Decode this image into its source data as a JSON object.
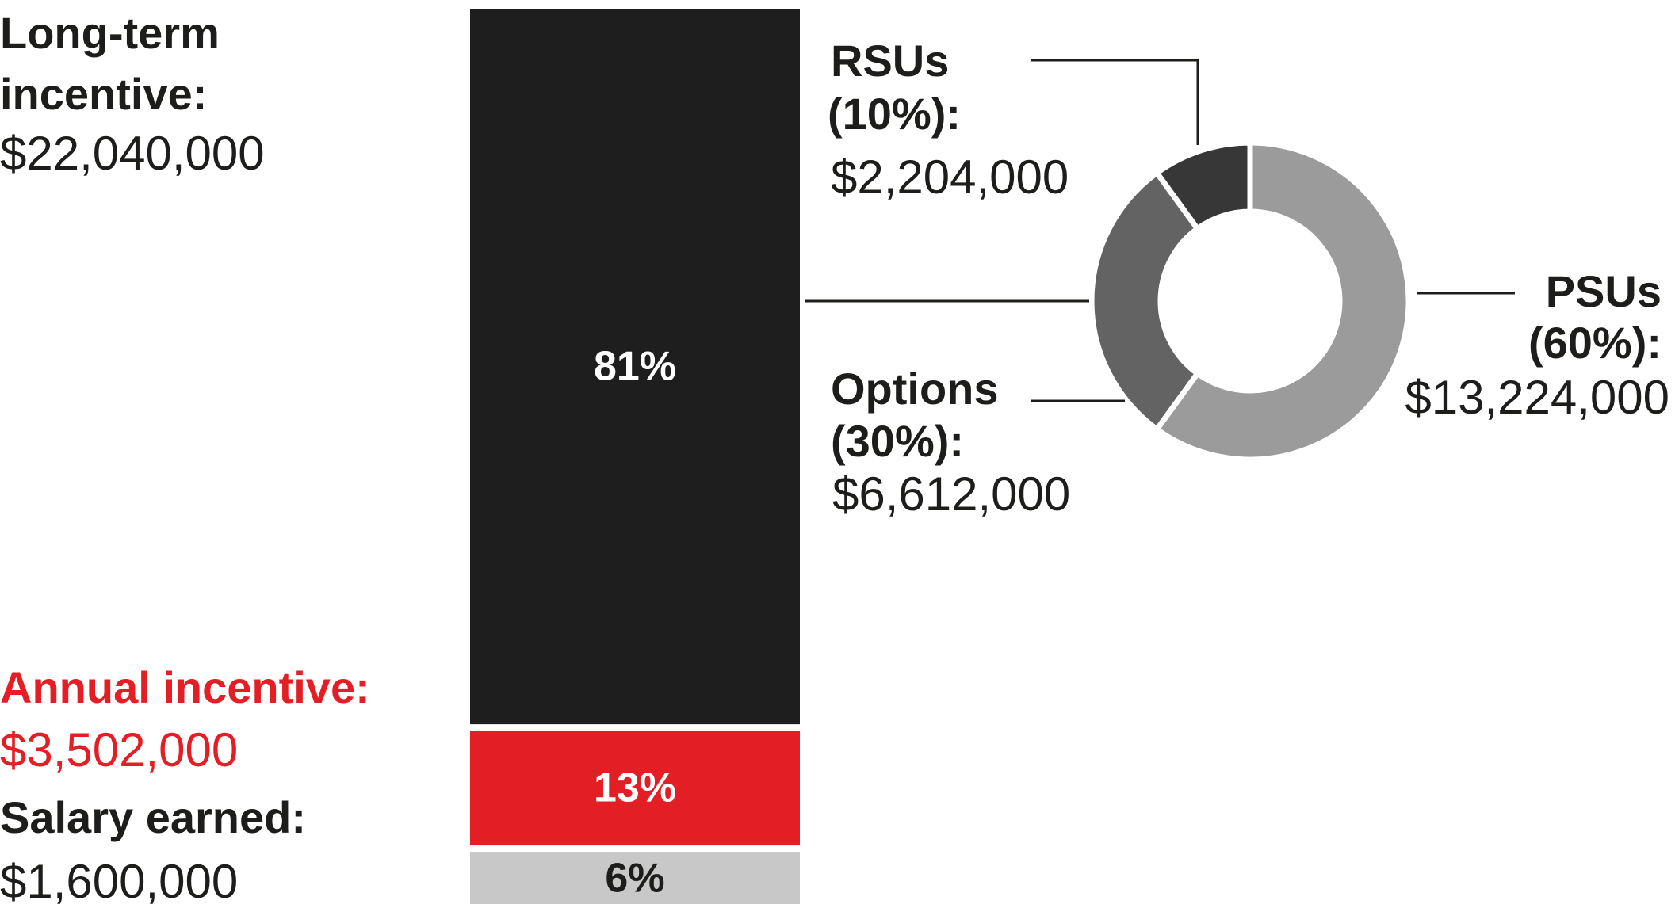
{
  "colors": {
    "long_term": "#1e1e1e",
    "annual": "#e31e24",
    "salary": "#c8c8c8",
    "psus": "#9b9b9b",
    "options": "#636363",
    "rsus": "#373737",
    "text": "#1d1d1b",
    "bar_label_light": "#ffffff"
  },
  "chart_data": [
    {
      "type": "bar",
      "stacked": true,
      "categories": [
        "Salary earned",
        "Annual incentive",
        "Long-term incentive"
      ],
      "series": [
        {
          "name": "Long-term incentive",
          "amount": "$22,040,000",
          "value": 22040000,
          "percent": 81,
          "label": "81%",
          "color_key": "long_term"
        },
        {
          "name": "Annual incentive",
          "amount": "$3,502,000",
          "value": 3502000,
          "percent": 13,
          "label": "13%",
          "color_key": "annual"
        },
        {
          "name": "Salary earned",
          "amount": "$1,600,000",
          "value": 1600000,
          "percent": 6,
          "label": "6%",
          "color_key": "salary"
        }
      ],
      "legend": {
        "long_term": {
          "title_line1": "Long-term",
          "title_line2": "incentive:",
          "amount": "$22,040,000"
        },
        "annual": {
          "title": "Annual incentive:",
          "amount": "$3,502,000"
        },
        "salary": {
          "title": "Salary earned:",
          "amount": "$1,600,000"
        }
      }
    },
    {
      "type": "pie",
      "donut": true,
      "slices": [
        {
          "key": "psus",
          "name": "PSUs",
          "pct_label": "(60%):",
          "percent": 60,
          "amount": "$13,224,000",
          "value": 13224000,
          "color_key": "psus"
        },
        {
          "key": "options",
          "name": "Options",
          "pct_label": "(30%):",
          "percent": 30,
          "amount": "$6,612,000",
          "value": 6612000,
          "color_key": "options"
        },
        {
          "key": "rsus",
          "name": "RSUs",
          "pct_label": "(10%):",
          "percent": 10,
          "amount": "$2,204,000",
          "value": 2204000,
          "color_key": "rsus"
        }
      ]
    }
  ]
}
